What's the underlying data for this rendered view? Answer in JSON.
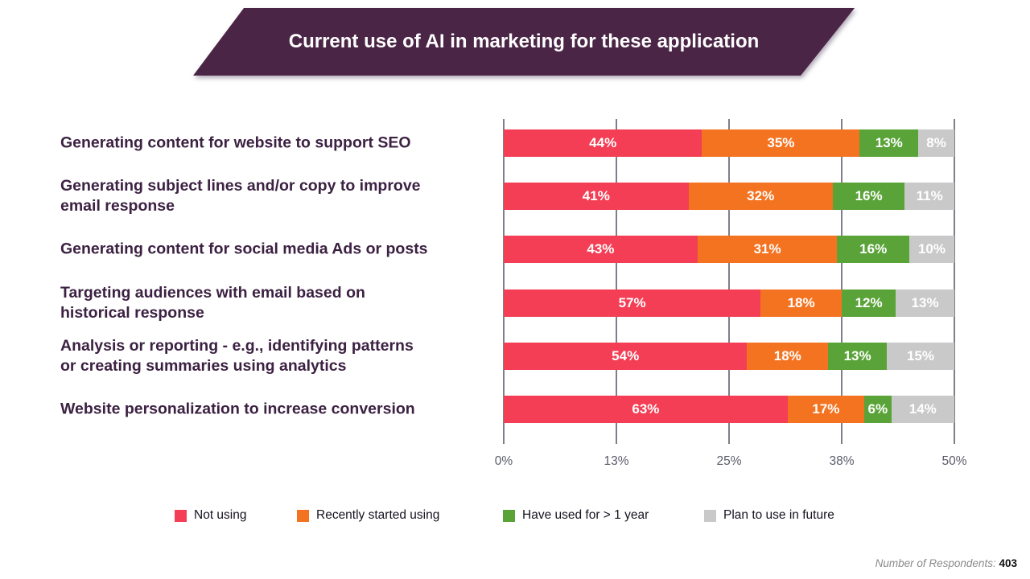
{
  "banner": {
    "title": "Current use of AI in marketing for these application"
  },
  "chart_data": {
    "type": "bar",
    "variant": "horizontal-stacked",
    "title": "Current use of AI in marketing for these application",
    "categories": [
      "Generating content for website to support SEO",
      "Generating subject lines and/or copy to improve email response",
      "Generating content for social media Ads or posts",
      "Targeting audiences with email based on historical response",
      "Analysis or reporting - e.g., identifying patterns or creating summaries using analytics",
      "Website personalization to increase conversion"
    ],
    "category_lines": [
      [
        "Generating content for website to support SEO"
      ],
      [
        "Generating subject lines and/or copy to improve",
        "email response"
      ],
      [
        "Generating content for social media Ads or posts"
      ],
      [
        "Targeting audiences with email based on",
        "historical response"
      ],
      [
        "Analysis or reporting - e.g., identifying patterns",
        "or creating summaries using analytics"
      ],
      [
        "Website personalization to increase conversion"
      ]
    ],
    "series": [
      {
        "name": "Not using",
        "color": "#f43e55",
        "values": [
          44,
          41,
          43,
          57,
          54,
          63
        ]
      },
      {
        "name": "Recently started using",
        "color": "#f47321",
        "values": [
          35,
          32,
          31,
          18,
          18,
          17
        ]
      },
      {
        "name": "Have used for > 1 year",
        "color": "#5aa338",
        "values": [
          13,
          16,
          16,
          12,
          13,
          6
        ]
      },
      {
        "name": "Plan to use in future",
        "color": "#c9c9c9",
        "values": [
          8,
          11,
          10,
          13,
          15,
          14
        ]
      }
    ],
    "value_suffix": "%",
    "x_axis": {
      "ticks": [
        "0%",
        "13%",
        "25%",
        "38%",
        "50%"
      ],
      "gridlines": true
    },
    "legend_position": "bottom"
  },
  "footer": {
    "label": "Number of Respondents:",
    "value": "403"
  }
}
